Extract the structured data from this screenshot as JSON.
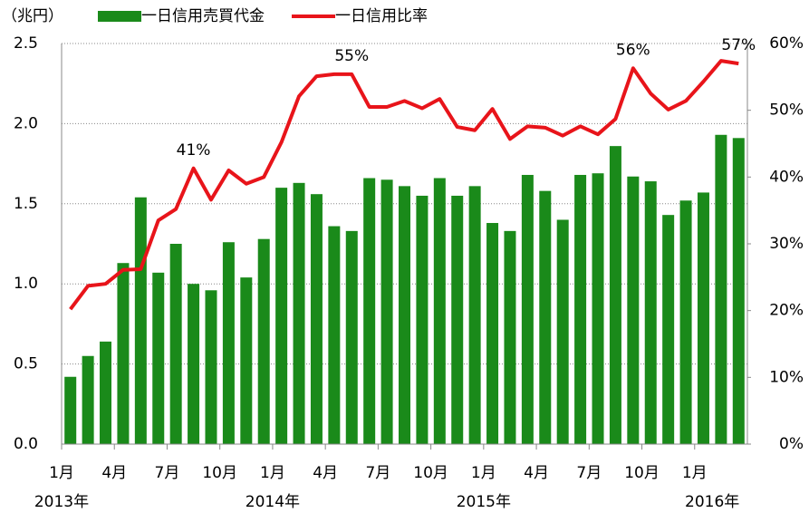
{
  "chart_data": {
    "type": "bar-line",
    "y_axis_label": "（兆円）",
    "categories": [
      "1月",
      null,
      null,
      "4月",
      null,
      null,
      "7月",
      null,
      null,
      "10月",
      null,
      null,
      "1月",
      null,
      null,
      "4月",
      null,
      null,
      "7月",
      null,
      null,
      "10月",
      null,
      null,
      "1月",
      null,
      null,
      "4月",
      null,
      null,
      "7月",
      null,
      null,
      "10月",
      null,
      null,
      "1月",
      null,
      null
    ],
    "years": [
      {
        "label": "2013年",
        "category": 0
      },
      {
        "label": "2014年",
        "category": 12
      },
      {
        "label": "2015年",
        "category": 24
      },
      {
        "label": "2016年",
        "category": 37
      }
    ],
    "series": [
      {
        "name": "一日信用売買代金",
        "color": "#1a8a1a",
        "kind": "bar",
        "values": [
          0.42,
          0.55,
          0.64,
          1.13,
          1.54,
          1.07,
          1.25,
          1.0,
          0.96,
          1.26,
          1.04,
          1.28,
          1.6,
          1.63,
          1.56,
          1.36,
          1.33,
          1.66,
          1.65,
          1.61,
          1.55,
          1.66,
          1.55,
          1.61,
          1.38,
          1.33,
          1.68,
          1.58,
          1.4,
          1.68,
          1.69,
          1.86,
          1.67,
          1.64,
          1.43,
          1.52,
          1.57,
          1.93,
          1.91
        ]
      },
      {
        "name": "一日信用比率",
        "color": "#e8141a",
        "kind": "line",
        "axis": "y2",
        "values": [
          20.2,
          23.7,
          24.0,
          26.1,
          26.2,
          33.5,
          35.2,
          41.3,
          36.6,
          41.0,
          39.0,
          40.0,
          45.2,
          52.1,
          55.1,
          55.4,
          55.4,
          50.5,
          50.5,
          51.4,
          50.3,
          51.7,
          47.5,
          47.0,
          50.2,
          45.7,
          47.6,
          47.4,
          46.2,
          47.6,
          46.4,
          48.7,
          56.3,
          52.5,
          50.1,
          51.4,
          54.3,
          57.4,
          57.0
        ],
        "value_labels": [
          null,
          null,
          null,
          null,
          null,
          null,
          null,
          "41%",
          null,
          null,
          null,
          null,
          null,
          null,
          null,
          null,
          "55%",
          null,
          null,
          null,
          null,
          null,
          null,
          null,
          null,
          null,
          null,
          null,
          null,
          null,
          null,
          null,
          "56%",
          null,
          null,
          null,
          null,
          null,
          "57%"
        ]
      }
    ],
    "ylim": [
      0,
      2.5
    ],
    "yticks": [
      {
        "value": 0,
        "label": "0.0"
      },
      0.5,
      {
        "value": 1,
        "label": "1.0"
      },
      1.5,
      {
        "value": 2,
        "label": "2.0"
      },
      2.5
    ],
    "y2lim": [
      0,
      60
    ],
    "y2ticks": [
      {
        "value": 0,
        "label": "0%"
      },
      {
        "value": 10,
        "label": "10%"
      },
      {
        "value": 20,
        "label": "20%"
      },
      {
        "value": 30,
        "label": "30%"
      },
      {
        "value": 40,
        "label": "40%"
      },
      {
        "value": 50,
        "label": "50%"
      },
      {
        "value": 60,
        "label": "60%"
      }
    ],
    "grid": true,
    "legend": "top"
  }
}
